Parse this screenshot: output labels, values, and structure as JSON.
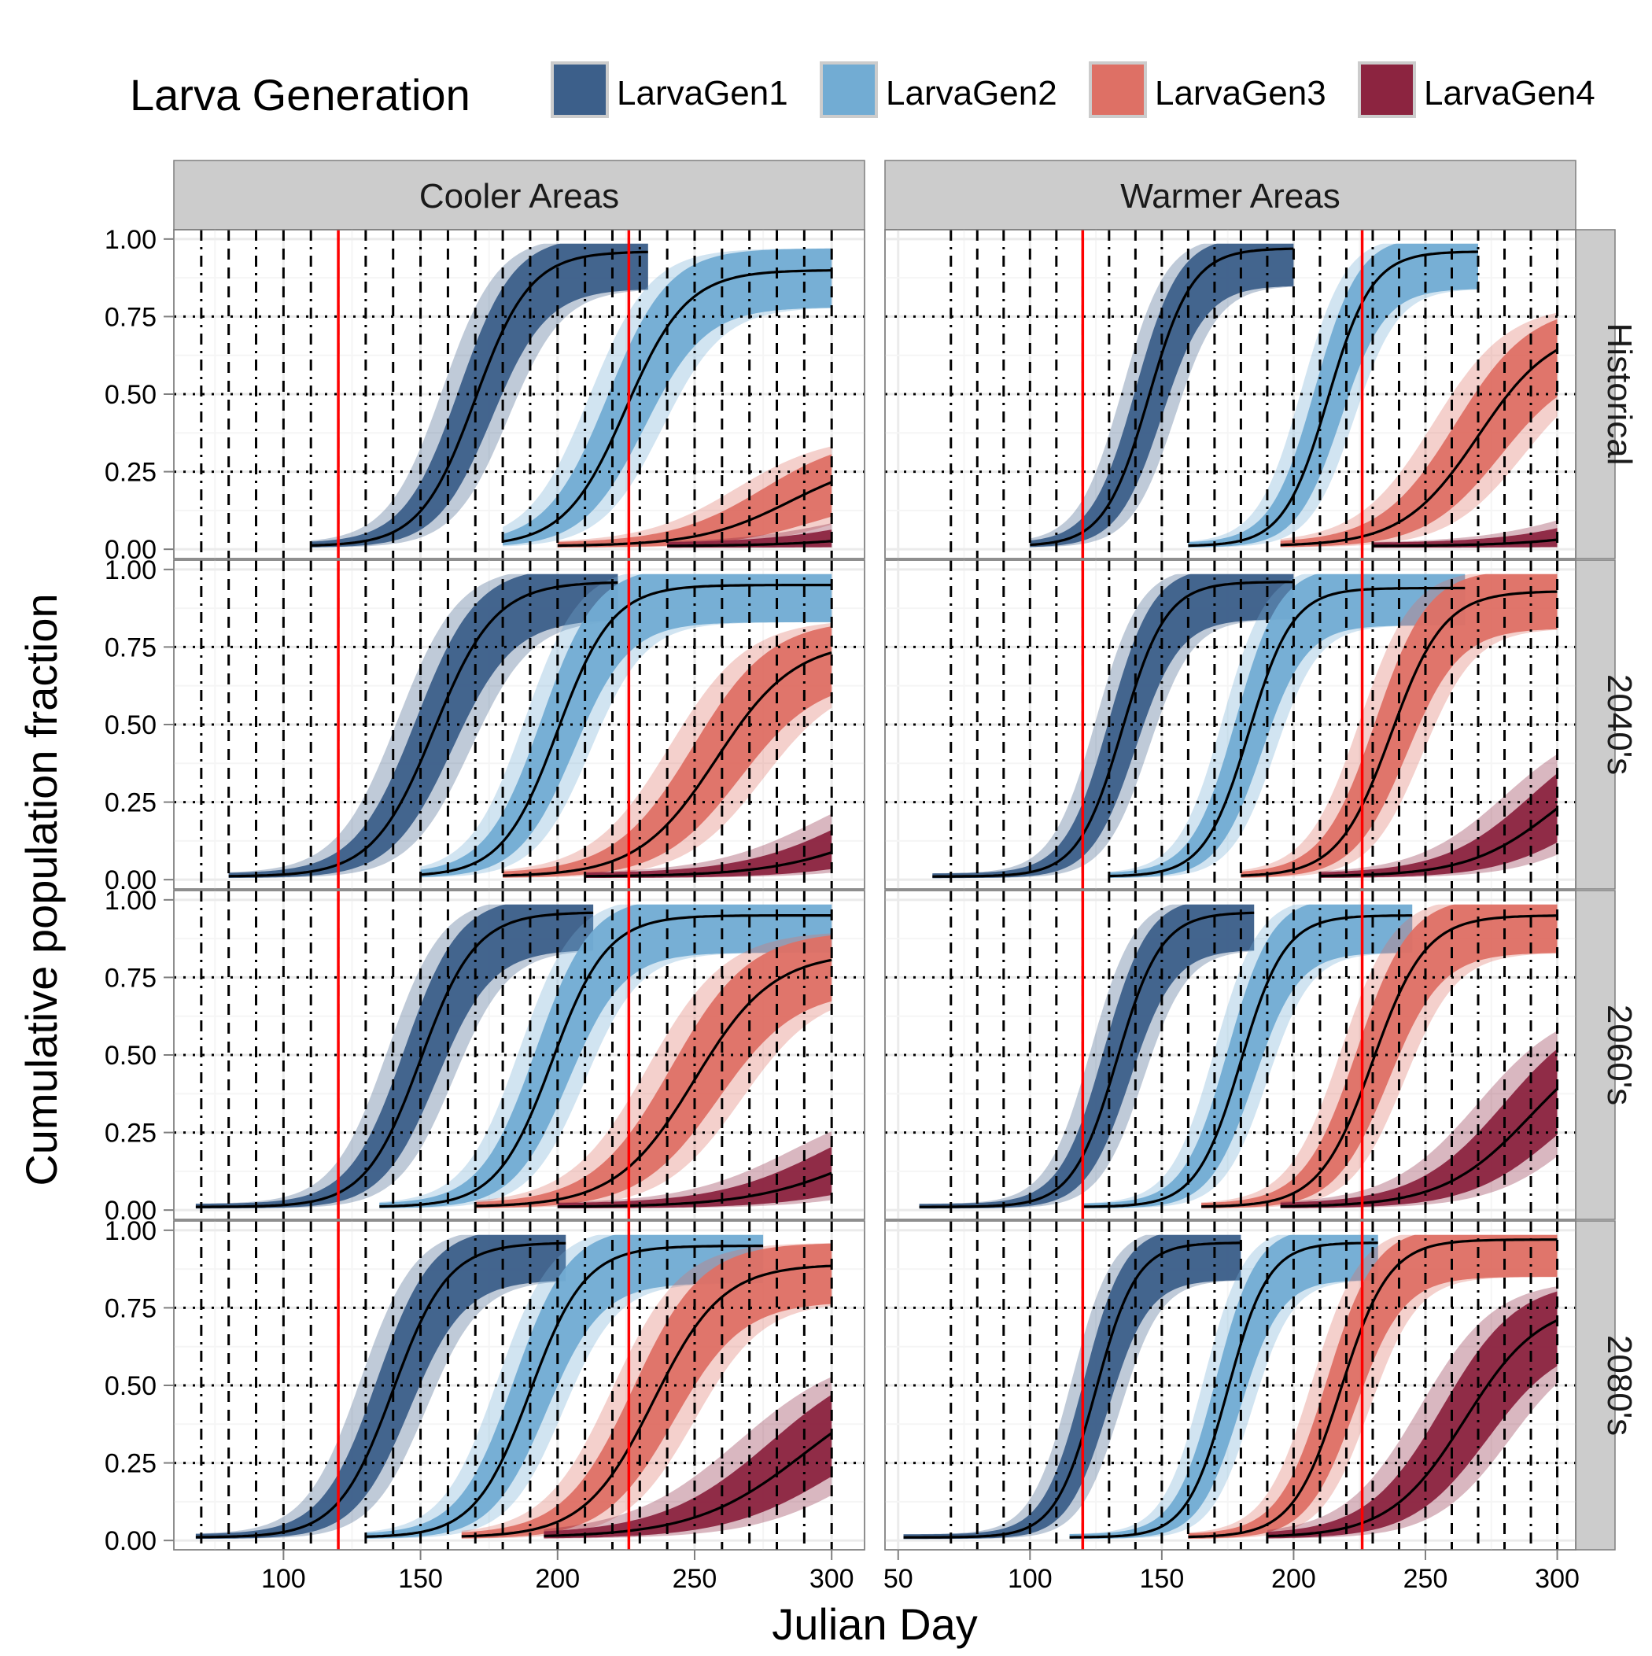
{
  "chart_data": {
    "type": "area",
    "legend": {
      "title": "Larva Generation",
      "placement": "top",
      "entries": [
        {
          "label": "LarvaGen1",
          "color": "#3c5f8a"
        },
        {
          "label": "LarvaGen2",
          "color": "#72acd3"
        },
        {
          "label": "LarvaGen3",
          "color": "#de7065"
        },
        {
          "label": "LarvaGen4",
          "color": "#8c2440"
        }
      ]
    },
    "xlabel": "Julian Day",
    "ylabel": "Cumulative population fraction",
    "columns": [
      {
        "label": "Cooler Areas",
        "xlim": [
          60,
          312
        ],
        "xticks": [
          100,
          150,
          200,
          250,
          300
        ]
      },
      {
        "label": "Warmer Areas",
        "xlim": [
          45,
          307
        ],
        "xticks": [
          50,
          100,
          150,
          200,
          250,
          300
        ]
      }
    ],
    "rows": [
      "Historical",
      "2040's",
      "2060's",
      "2080's"
    ],
    "ylim": [
      -0.03,
      1.03
    ],
    "yticks": [
      "0.00",
      "0.25",
      "0.50",
      "0.75",
      "1.00"
    ],
    "yticks_values": [
      0,
      0.25,
      0.5,
      0.75,
      1
    ],
    "reference_lines_x": [
      120,
      226
    ],
    "reference_line_color": "#ff0000",
    "dotdash_vlines_x": [
      70,
      90,
      110,
      130,
      150,
      170,
      190,
      210,
      230,
      250,
      270,
      290
    ],
    "dashed_vlines_x": [
      80,
      100,
      120,
      140,
      160,
      180,
      200,
      220,
      240,
      260,
      280,
      300
    ],
    "dotted_hlines_y": [
      0.25,
      0.5,
      0.75
    ],
    "grid": true,
    "panels": [
      {
        "column": "Cooler Areas",
        "row": "Historical",
        "series": [
          {
            "name": "LarvaGen1",
            "start": 110,
            "end": 233,
            "mid": 170,
            "slope": 0.1,
            "max": 0.96
          },
          {
            "name": "LarvaGen2",
            "start": 180,
            "end": 300,
            "mid": 225,
            "slope": 0.09,
            "max": 0.9
          },
          {
            "name": "LarvaGen3",
            "start": 200,
            "end": 300,
            "mid": 285,
            "slope": 0.06,
            "max": 0.3
          },
          {
            "name": "LarvaGen4",
            "start": 240,
            "end": 300,
            "mid": 330,
            "slope": 0.05,
            "max": 0.1
          }
        ]
      },
      {
        "column": "Warmer Areas",
        "row": "Historical",
        "series": [
          {
            "name": "LarvaGen1",
            "start": 100,
            "end": 200,
            "mid": 145,
            "slope": 0.12,
            "max": 0.97
          },
          {
            "name": "LarvaGen2",
            "start": 160,
            "end": 270,
            "mid": 213,
            "slope": 0.12,
            "max": 0.96
          },
          {
            "name": "LarvaGen3",
            "start": 195,
            "end": 300,
            "mid": 270,
            "slope": 0.07,
            "max": 0.72
          },
          {
            "name": "LarvaGen4",
            "start": 230,
            "end": 300,
            "mid": 335,
            "slope": 0.05,
            "max": 0.15
          }
        ]
      },
      {
        "column": "Cooler Areas",
        "row": "2040's",
        "series": [
          {
            "name": "LarvaGen1",
            "start": 80,
            "end": 222,
            "mid": 155,
            "slope": 0.09,
            "max": 0.96
          },
          {
            "name": "LarvaGen2",
            "start": 150,
            "end": 300,
            "mid": 200,
            "slope": 0.1,
            "max": 0.95
          },
          {
            "name": "LarvaGen3",
            "start": 180,
            "end": 300,
            "mid": 258,
            "slope": 0.07,
            "max": 0.77
          },
          {
            "name": "LarvaGen4",
            "start": 210,
            "end": 300,
            "mid": 320,
            "slope": 0.05,
            "max": 0.3
          }
        ]
      },
      {
        "column": "Warmer Areas",
        "row": "2040's",
        "series": [
          {
            "name": "LarvaGen1",
            "start": 63,
            "end": 200,
            "mid": 135,
            "slope": 0.12,
            "max": 0.96
          },
          {
            "name": "LarvaGen2",
            "start": 130,
            "end": 265,
            "mid": 183,
            "slope": 0.12,
            "max": 0.94
          },
          {
            "name": "LarvaGen3",
            "start": 180,
            "end": 300,
            "mid": 237,
            "slope": 0.1,
            "max": 0.93
          },
          {
            "name": "LarvaGen4",
            "start": 210,
            "end": 300,
            "mid": 300,
            "slope": 0.06,
            "max": 0.45
          }
        ]
      },
      {
        "column": "Cooler Areas",
        "row": "2060's",
        "series": [
          {
            "name": "LarvaGen1",
            "start": 68,
            "end": 213,
            "mid": 150,
            "slope": 0.1,
            "max": 0.96
          },
          {
            "name": "LarvaGen2",
            "start": 135,
            "end": 300,
            "mid": 198,
            "slope": 0.1,
            "max": 0.95
          },
          {
            "name": "LarvaGen3",
            "start": 170,
            "end": 300,
            "mid": 250,
            "slope": 0.07,
            "max": 0.83
          },
          {
            "name": "LarvaGen4",
            "start": 200,
            "end": 300,
            "mid": 310,
            "slope": 0.05,
            "max": 0.3
          }
        ]
      },
      {
        "column": "Warmer Areas",
        "row": "2060's",
        "series": [
          {
            "name": "LarvaGen1",
            "start": 58,
            "end": 185,
            "mid": 133,
            "slope": 0.12,
            "max": 0.96
          },
          {
            "name": "LarvaGen2",
            "start": 120,
            "end": 245,
            "mid": 180,
            "slope": 0.12,
            "max": 0.95
          },
          {
            "name": "LarvaGen3",
            "start": 165,
            "end": 300,
            "mid": 230,
            "slope": 0.1,
            "max": 0.95
          },
          {
            "name": "LarvaGen4",
            "start": 195,
            "end": 300,
            "mid": 290,
            "slope": 0.06,
            "max": 0.6
          }
        ]
      },
      {
        "column": "Cooler Areas",
        "row": "2080's",
        "series": [
          {
            "name": "LarvaGen1",
            "start": 68,
            "end": 203,
            "mid": 140,
            "slope": 0.1,
            "max": 0.96
          },
          {
            "name": "LarvaGen2",
            "start": 130,
            "end": 275,
            "mid": 190,
            "slope": 0.1,
            "max": 0.95
          },
          {
            "name": "LarvaGen3",
            "start": 165,
            "end": 300,
            "mid": 235,
            "slope": 0.08,
            "max": 0.89
          },
          {
            "name": "LarvaGen4",
            "start": 195,
            "end": 300,
            "mid": 290,
            "slope": 0.05,
            "max": 0.55
          }
        ]
      },
      {
        "column": "Warmer Areas",
        "row": "2080's",
        "series": [
          {
            "name": "LarvaGen1",
            "start": 52,
            "end": 180,
            "mid": 125,
            "slope": 0.13,
            "max": 0.96
          },
          {
            "name": "LarvaGen2",
            "start": 115,
            "end": 232,
            "mid": 175,
            "slope": 0.13,
            "max": 0.96
          },
          {
            "name": "LarvaGen3",
            "start": 160,
            "end": 300,
            "mid": 218,
            "slope": 0.11,
            "max": 0.97
          },
          {
            "name": "LarvaGen4",
            "start": 190,
            "end": 300,
            "mid": 265,
            "slope": 0.07,
            "max": 0.77
          }
        ]
      }
    ]
  }
}
